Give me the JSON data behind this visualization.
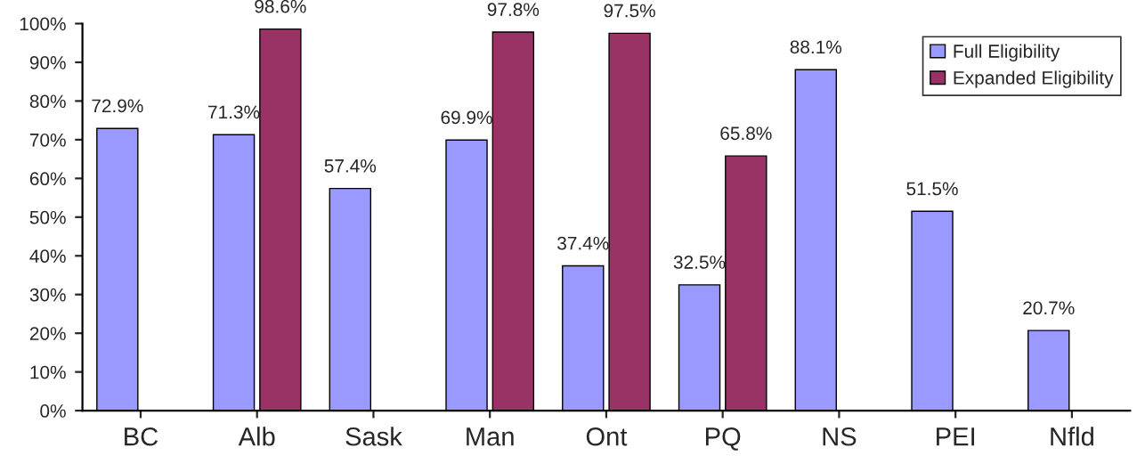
{
  "chart_data": {
    "type": "bar",
    "categories": [
      "BC",
      "Alb",
      "Sask",
      "Man",
      "Ont",
      "PQ",
      "NS",
      "PEI",
      "Nfld"
    ],
    "series": [
      {
        "name": "Full Eligibility",
        "color": "#9999ff",
        "values": [
          72.9,
          71.3,
          57.4,
          69.9,
          37.4,
          32.5,
          88.1,
          51.5,
          20.7
        ],
        "value_labels": [
          "72.9%",
          "71.3%",
          "57.4%",
          "69.9%",
          "37.4%",
          "32.5%",
          "88.1%",
          "51.5%",
          "20.7%"
        ]
      },
      {
        "name": "Expanded Eligibility",
        "color": "#993366",
        "values": [
          null,
          98.6,
          null,
          97.8,
          97.5,
          65.8,
          null,
          null,
          null
        ],
        "value_labels": [
          null,
          "98.6%",
          null,
          "97.8%",
          "97.5%",
          "65.8%",
          null,
          null,
          null
        ]
      }
    ],
    "ylim": [
      0,
      100
    ],
    "yticks": [
      {
        "value": 0,
        "label": "0%"
      },
      {
        "value": 10,
        "label": "10%"
      },
      {
        "value": 20,
        "label": "20%"
      },
      {
        "value": 30,
        "label": "30%"
      },
      {
        "value": 40,
        "label": "40%"
      },
      {
        "value": 50,
        "label": "50%"
      },
      {
        "value": 60,
        "label": "60%"
      },
      {
        "value": 70,
        "label": "70%"
      },
      {
        "value": 80,
        "label": "80%"
      },
      {
        "value": 90,
        "label": "90%"
      },
      {
        "value": 100,
        "label": "100%"
      }
    ],
    "grid": false,
    "legend": "top right"
  }
}
